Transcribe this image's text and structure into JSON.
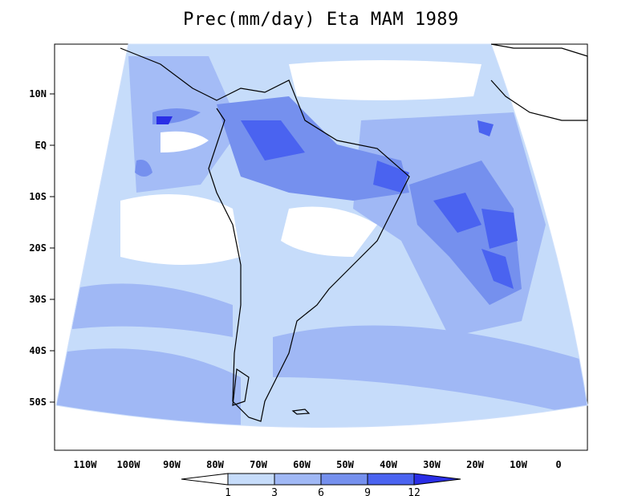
{
  "title": "Prec(mm/day) Eta MAM 1989",
  "axes": {
    "lat_ticks": [
      "10N",
      "EQ",
      "10S",
      "20S",
      "30S",
      "40S",
      "50S"
    ],
    "lon_ticks": [
      "110W",
      "100W",
      "90W",
      "80W",
      "70W",
      "60W",
      "50W",
      "40W",
      "30W",
      "20W",
      "10W",
      "0"
    ]
  },
  "colorbar": {
    "labels": [
      "1",
      "3",
      "6",
      "9",
      "12"
    ],
    "colors": [
      "#ffffff",
      "#c6dcfa",
      "#a0b8f5",
      "#7590ee",
      "#4a63f0",
      "#2a2ee6"
    ]
  },
  "palette": {
    "ocean_light": "#c6dcfa",
    "mid": "#a0b8f5",
    "strong": "#7590ee",
    "heavy": "#4a63f0",
    "extreme": "#2a2ee6",
    "dry": "#ffffff"
  }
}
